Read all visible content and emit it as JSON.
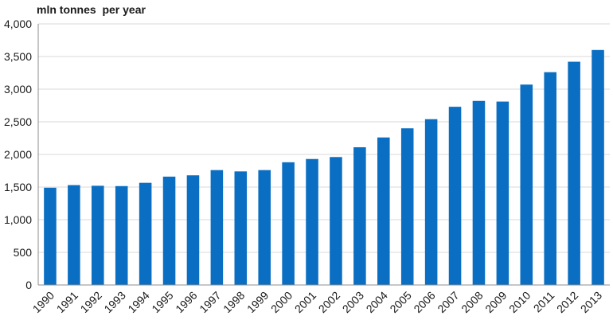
{
  "chart_data": {
    "type": "bar",
    "title": "",
    "unit_label": "mln tonnes  per year",
    "xlabel": "",
    "ylabel": "",
    "categories": [
      "1990",
      "1991",
      "1992",
      "1993",
      "1994",
      "1995",
      "1996",
      "1997",
      "1998",
      "1999",
      "2000",
      "2001",
      "2002",
      "2003",
      "2004",
      "2005",
      "2006",
      "2007",
      "2008",
      "2009",
      "2010",
      "2011",
      "2012",
      "2013"
    ],
    "values": [
      1490,
      1530,
      1520,
      1515,
      1565,
      1660,
      1680,
      1760,
      1740,
      1760,
      1880,
      1930,
      1960,
      2110,
      2260,
      2400,
      2540,
      2730,
      2820,
      2810,
      3070,
      3260,
      3420,
      3600
    ],
    "ylim": [
      0,
      4000
    ],
    "yticks": [
      0,
      500,
      1000,
      1500,
      2000,
      2500,
      3000,
      3500,
      4000
    ],
    "ytick_labels": [
      "0",
      "500",
      "1,000",
      "1,500",
      "2,000",
      "2,500",
      "3,000",
      "3,500",
      "4,000"
    ],
    "grid": "horizontal",
    "legend": "none",
    "colors": {
      "bar": "#0a6fc2",
      "grid": "#d9d9d9",
      "axis": "#8c8c8c"
    }
  }
}
